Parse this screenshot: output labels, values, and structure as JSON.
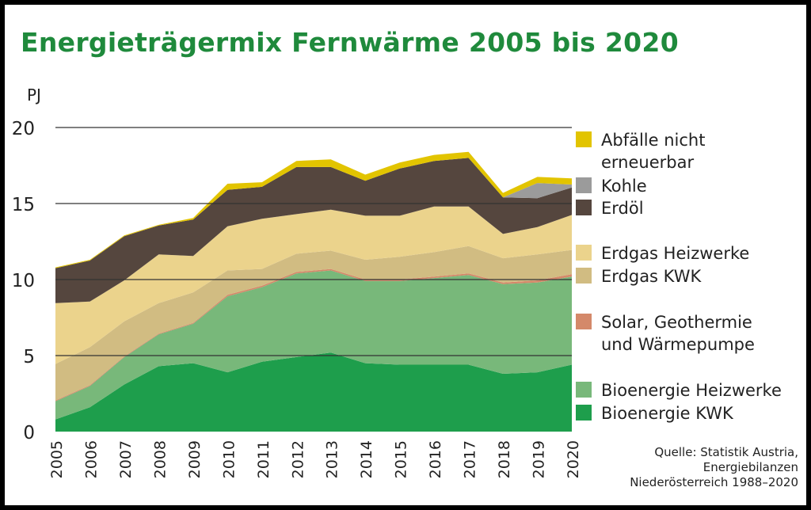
{
  "chart_data": {
    "type": "area",
    "stacked": true,
    "title": "Energieträgermix Fernwärme 2005 bis 2020",
    "ylabel": "PJ",
    "xlabel": "",
    "ylim": [
      0,
      20
    ],
    "yticks": [
      "0",
      "5",
      "10",
      "15",
      "20"
    ],
    "grid": true,
    "legend_position": "right",
    "x": [
      "2005",
      "2006",
      "2007",
      "2008",
      "2009",
      "2010",
      "2011",
      "2012",
      "2013",
      "2014",
      "2015",
      "2016",
      "2017",
      "2018",
      "2019",
      "2020"
    ],
    "series": [
      {
        "name": "Bioenergie KWK",
        "color": "#1e9e4c",
        "values": [
          0.8,
          1.6,
          3.1,
          4.3,
          4.5,
          3.9,
          4.6,
          4.9,
          5.2,
          4.5,
          4.4,
          4.4,
          4.4,
          3.8,
          3.9,
          4.4
        ]
      },
      {
        "name": "Bioenergie Heizwerke",
        "color": "#78b87a",
        "values": [
          1.2,
          1.4,
          1.8,
          2.1,
          2.6,
          5.0,
          4.9,
          5.5,
          5.4,
          5.4,
          5.5,
          5.7,
          5.9,
          5.9,
          5.9,
          5.8
        ]
      },
      {
        "name": "Solar, Geothermie und Wärmepumpe",
        "color": "#d4896a",
        "values": [
          0.05,
          0.05,
          0.05,
          0.05,
          0.05,
          0.1,
          0.1,
          0.1,
          0.1,
          0.1,
          0.1,
          0.1,
          0.1,
          0.1,
          0.15,
          0.15
        ]
      },
      {
        "name": "Erdgas KWK",
        "color": "#d1bc82",
        "values": [
          2.4,
          2.5,
          2.3,
          2.0,
          2.0,
          1.6,
          1.1,
          1.2,
          1.2,
          1.3,
          1.5,
          1.6,
          1.8,
          1.6,
          1.7,
          1.6
        ]
      },
      {
        "name": "Erdgas Heizwerke",
        "color": "#ebd38c",
        "values": [
          4.0,
          3.0,
          2.7,
          3.2,
          2.4,
          2.9,
          3.3,
          2.6,
          2.7,
          2.9,
          2.7,
          3.0,
          2.6,
          1.6,
          1.8,
          2.3
        ]
      },
      {
        "name": "Erdöl",
        "color": "#55463e",
        "values": [
          2.3,
          2.7,
          2.9,
          1.9,
          2.4,
          2.4,
          2.1,
          3.1,
          2.8,
          2.3,
          3.1,
          3.0,
          3.2,
          2.4,
          1.9,
          1.8
        ]
      },
      {
        "name": "Kohle",
        "color": "#9b9b9b",
        "values": [
          0,
          0,
          0,
          0,
          0,
          0,
          0,
          0,
          0,
          0,
          0,
          0,
          0,
          0,
          1.0,
          0.2
        ]
      },
      {
        "name": "Abfälle nicht erneuerbar",
        "color": "#e2c400",
        "values": [
          0.05,
          0.05,
          0.05,
          0.05,
          0.1,
          0.4,
          0.3,
          0.4,
          0.5,
          0.4,
          0.4,
          0.4,
          0.4,
          0.3,
          0.4,
          0.4
        ]
      }
    ]
  },
  "legend": [
    {
      "label": "Abfälle nicht erneuerbar",
      "color": "#e2c400"
    },
    {
      "label": "Kohle",
      "color": "#9b9b9b"
    },
    {
      "label": "Erdöl",
      "color": "#55463e"
    },
    {
      "label": "Erdgas Heizwerke",
      "color": "#ebd38c"
    },
    {
      "label": "Erdgas KWK",
      "color": "#d1bc82"
    },
    {
      "label": "Solar, Geothermie und Wärmepumpe",
      "color": "#d4896a"
    },
    {
      "label": "Bioenergie Heizwerke",
      "color": "#78b87a"
    },
    {
      "label": "Bioenergie KWK",
      "color": "#1e9e4c"
    }
  ],
  "source": {
    "line1": "Quelle: Statistik Austria,",
    "line2": "Energiebilanzen",
    "line3": "Niederösterreich 1988–2020"
  }
}
